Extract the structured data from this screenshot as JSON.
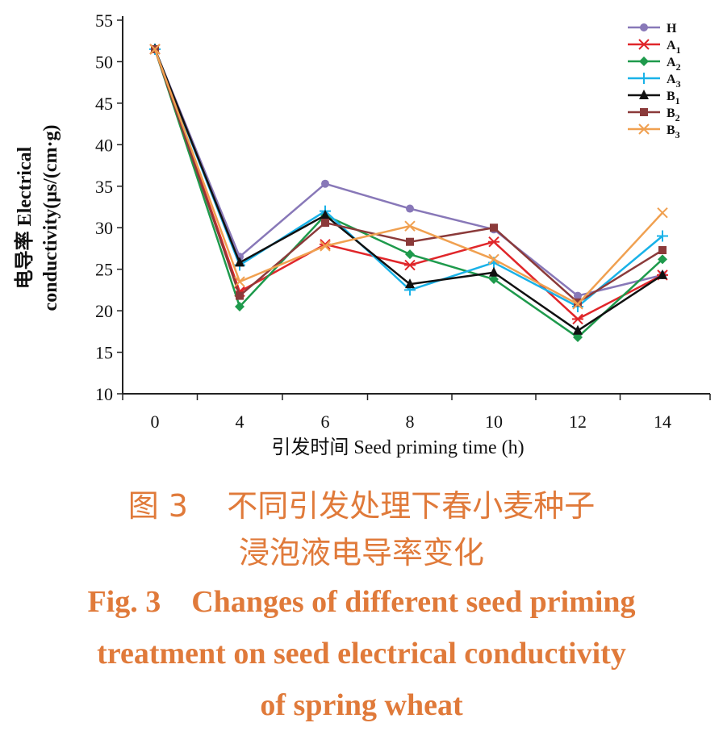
{
  "chart_data": {
    "type": "line",
    "x": [
      0,
      4,
      6,
      8,
      10,
      12,
      14
    ],
    "xlabel": "引发时间 Seed priming time (h)",
    "ylabel_cn": "电导率 Electrical",
    "ylabel_en": "conductivity(μs/(cm·g)",
    "ylim": [
      10,
      55
    ],
    "yticks": [
      10,
      15,
      20,
      25,
      30,
      35,
      40,
      45,
      50,
      55
    ],
    "grid": false,
    "legend_position": "top-right",
    "series": [
      {
        "name": "H",
        "sub": "",
        "color": "#8878b8",
        "marker": "circle",
        "values": [
          51.5,
          26.5,
          35.3,
          32.3,
          29.8,
          21.8,
          24.3
        ]
      },
      {
        "name": "A",
        "sub": "1",
        "color": "#e0262a",
        "marker": "asterisk",
        "values": [
          51.5,
          22.3,
          28.0,
          25.5,
          28.3,
          19.0,
          24.3
        ]
      },
      {
        "name": "A",
        "sub": "2",
        "color": "#1e9a4c",
        "marker": "diamond",
        "values": [
          51.5,
          20.5,
          31.5,
          26.8,
          23.8,
          16.8,
          26.2
        ]
      },
      {
        "name": "A",
        "sub": "3",
        "color": "#19b2e8",
        "marker": "plus",
        "values": [
          51.5,
          25.5,
          32.0,
          22.5,
          25.8,
          20.5,
          29.0
        ]
      },
      {
        "name": "B",
        "sub": "1",
        "color": "#111111",
        "marker": "triangle",
        "values": [
          51.5,
          25.8,
          31.5,
          23.2,
          24.6,
          17.6,
          24.3
        ]
      },
      {
        "name": "B",
        "sub": "2",
        "color": "#8b3a3a",
        "marker": "square",
        "values": [
          51.5,
          21.8,
          30.6,
          28.3,
          30.0,
          21.0,
          27.3
        ]
      },
      {
        "name": "B",
        "sub": "3",
        "color": "#f0a050",
        "marker": "cross",
        "values": [
          51.5,
          23.5,
          27.8,
          30.2,
          26.2,
          20.8,
          31.8
        ]
      }
    ]
  },
  "caption": {
    "cn_line1": "图 3    不同引发处理下春小麦种子",
    "cn_line2": "浸泡液电导率变化",
    "en_line1": "Fig. 3    Changes of different seed priming",
    "en_line2": "treatment on seed electrical conductivity",
    "en_line3": "of spring wheat"
  }
}
